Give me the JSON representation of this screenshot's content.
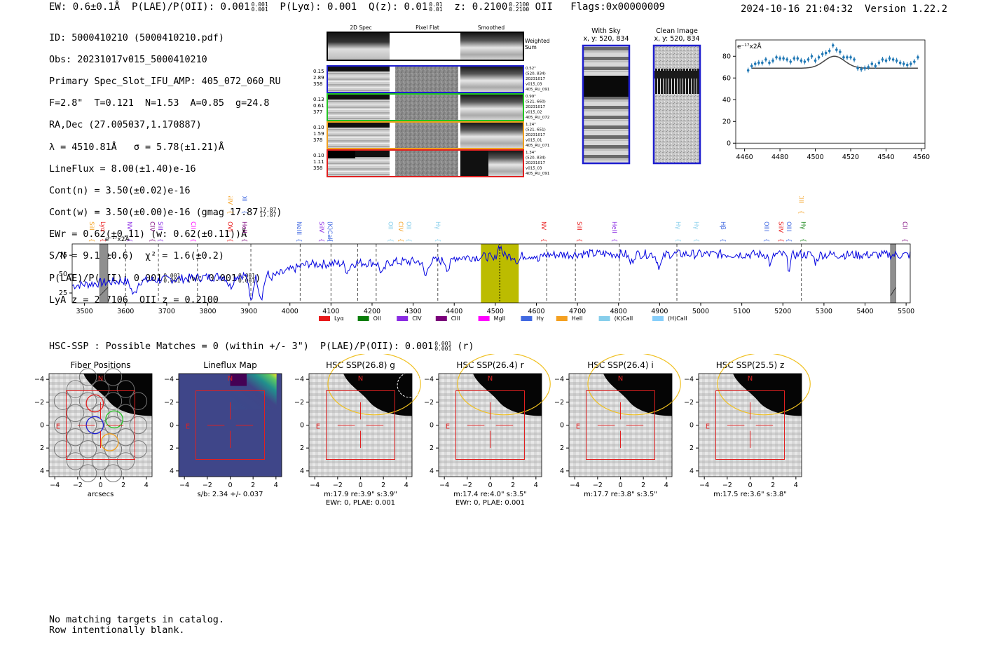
{
  "header": {
    "ew": "EW: 0.6±0.1Å",
    "plae_label": "P(LAE)/P(OII): 0.001",
    "plae_hi": "0.001",
    "plae_lo": "0.001",
    "plya": "P(Lyα): 0.001",
    "qz_label": "Q(z): 0.01",
    "qz_hi": "0.01",
    "qz_lo": "0.01",
    "z_label": "z: 0.2100",
    "z_hi": "0.2100",
    "z_lo": "0.2100",
    "z_line": "OII",
    "flags": "Flags:0x00000009",
    "timestamp": "2024-10-16 21:04:32",
    "version": "Version 1.22.2"
  },
  "info": {
    "id": "ID: 5000410210 (5000410210.pdf)",
    "obs": "Obs: 20231017v015_5000410210",
    "primary": "Primary Spec_Slot_IFU_AMP: 405_072_060_RU",
    "fit": "F=2.8\"  T=0.121  N=1.53  A=0.85  g=24.8",
    "radec": "RA,Dec (27.005037,1.170887)",
    "lambda": "λ = 4510.81Å   σ = 5.78(±1.21)Å",
    "lineflux": "LineFlux = 8.00(±1.40)e-16",
    "contn": "Cont(n) = 3.50(±0.02)e-16",
    "contw_label": "Cont(w) = 3.50(±0.00)e-16 (gmag 17.87",
    "contw_hi": "17.87",
    "contw_lo": "17.87",
    "ewr": "EWr = 0.62(±0.11) (w: 0.62(±0.11))Å",
    "sn": "S/N = 9.1(±0.6)  χ² = 1.6(±0.2)",
    "plae_label": "P(LAE)/P(OII): 0.001",
    "plae_hi": "0.001",
    "plae_lo": "0.001",
    "plae_w_label": "(w: 0.001",
    "plae_w_hi": "0.001",
    "plae_w_lo": "0.001",
    "lya": "LyA z = 2.7106  OII z = 0.2100"
  },
  "cutouts": {
    "col_headers": [
      "2D Spec",
      "Pixel Flat",
      "Smoothed"
    ],
    "weighted_label_1": "Weighted",
    "weighted_label_2": "Sum",
    "rows": [
      {
        "left": [
          "0.15",
          "2.89",
          "358"
        ],
        "right": [
          "0.52\"",
          "(520, 834)",
          "20231017",
          "v015_03",
          "405_RU_091"
        ],
        "color": "#1f1fd0"
      },
      {
        "left": [
          "0.13",
          "0.61",
          "377"
        ],
        "right": [
          "0.99\"",
          "(521, 660)",
          "20231017",
          "v015_02",
          "405_RU_072"
        ],
        "color": "#22c422"
      },
      {
        "left": [
          "0.10",
          "1.59",
          "378"
        ],
        "right": [
          "1.24\"",
          "(521, 651)",
          "20231017",
          "v015_01",
          "405_RU_071"
        ],
        "color": "#f0a020"
      },
      {
        "left": [
          "0.10",
          "1.11",
          "358"
        ],
        "right": [
          "1.34\"",
          "(520, 834)",
          "20231017",
          "v015_03",
          "405_RU_091"
        ],
        "color": "#e02020"
      }
    ]
  },
  "sky_panels": {
    "with_sky_title": "With Sky",
    "with_sky_coords": "x, y: 520, 834",
    "clean_title": "Clean Image",
    "clean_coords": "x, y: 520, 834"
  },
  "chart_data": [
    {
      "type": "scatter",
      "title": "",
      "unit_label": "e⁻¹⁷x2Å",
      "xlim": [
        4455,
        4562
      ],
      "ylim": [
        -5,
        95
      ],
      "xticks": [
        4460,
        4480,
        4500,
        4520,
        4540,
        4560
      ],
      "yticks": [
        0,
        20,
        40,
        60,
        80
      ],
      "x": [
        4462,
        4464,
        4466,
        4468,
        4470,
        4472,
        4474,
        4476,
        4478,
        4480,
        4482,
        4484,
        4486,
        4488,
        4490,
        4492,
        4494,
        4496,
        4498,
        4500,
        4502,
        4504,
        4506,
        4508,
        4510,
        4512,
        4514,
        4516,
        4518,
        4520,
        4522,
        4524,
        4526,
        4528,
        4530,
        4532,
        4534,
        4536,
        4538,
        4540,
        4542,
        4544,
        4546,
        4548,
        4550,
        4552,
        4554,
        4556,
        4558
      ],
      "y": [
        67,
        71,
        73,
        74,
        74,
        77,
        74,
        76,
        79,
        78,
        78,
        77,
        75,
        78,
        78,
        76,
        75,
        77,
        80,
        76,
        79,
        82,
        83,
        85,
        90,
        86,
        84,
        79,
        79,
        79,
        77,
        69,
        68,
        69,
        70,
        73,
        71,
        74,
        77,
        76,
        78,
        77,
        76,
        74,
        73,
        72,
        73,
        75,
        79
      ],
      "fit_baseline": 69,
      "fit_peak": 80,
      "fit_center": 4510.8,
      "fit_sigma": 5.8
    },
    {
      "type": "line",
      "unit_label": "e⁻¹⁷x2Å",
      "xlim": [
        3470,
        5510
      ],
      "ylim": [
        12,
        90
      ],
      "xticks": [
        3500,
        3600,
        3700,
        3800,
        3900,
        4000,
        4100,
        4200,
        4300,
        4400,
        4500,
        4600,
        4700,
        4800,
        4900,
        5000,
        5100,
        5200,
        5300,
        5400,
        5500
      ],
      "yticks": [
        25,
        50,
        75
      ],
      "highlight": [
        4465,
        4557
      ],
      "center_line": 4510.8,
      "masked": [
        [
          3537,
          3557
        ],
        [
          5462,
          5475
        ]
      ],
      "dashed_lines": [
        3600,
        3680,
        3775,
        3905,
        4025,
        4100,
        4165,
        4210,
        4360,
        4625,
        4695,
        4802,
        4942,
        5245
      ],
      "legend": [
        {
          "label": "Lyα",
          "color": "#e8191a"
        },
        {
          "label": "OII",
          "color": "#0a7d0a"
        },
        {
          "label": "CIV",
          "color": "#8a2be2"
        },
        {
          "label": "CIII",
          "color": "#7a007a"
        },
        {
          "label": "MgII",
          "color": "#ff00ff"
        },
        {
          "label": "Hγ",
          "color": "#4169e1"
        },
        {
          "label": "HeII",
          "color": "#f4a020"
        },
        {
          "label": "(K)CaII",
          "color": "#87ceeb"
        },
        {
          "label": "(H)CaII",
          "color": "#87cefa"
        }
      ],
      "line_labels": [
        {
          "label": "SiII",
          "x": 3518,
          "color": "#f4a020",
          "row": 0
        },
        {
          "label": "Lyα",
          "x": 3545,
          "color": "#e8191a",
          "row": 0
        },
        {
          "label": "NV",
          "x": 3610,
          "color": "#8a2be2",
          "row": 0
        },
        {
          "label": "CIV",
          "x": 3665,
          "color": "#7a007a",
          "row": 0
        },
        {
          "label": "SiII",
          "x": 3685,
          "color": "#8a2be2",
          "row": 0
        },
        {
          "label": "CII",
          "x": 3765,
          "color": "#ff00ff",
          "row": 0
        },
        {
          "label": "OVI",
          "x": 3855,
          "color": "#e8191a",
          "row": 0
        },
        {
          "label": "HeII",
          "x": 3890,
          "color": "#7a007a",
          "row": 0
        },
        {
          "label": "SiIV",
          "x": 3855,
          "color": "#f4a020",
          "row": 1
        },
        {
          "label": "OII",
          "x": 3890,
          "color": "#4169e1",
          "row": 1
        },
        {
          "label": "NeIII",
          "x": 4023,
          "color": "#4169e1",
          "row": 0
        },
        {
          "label": "SiIV",
          "x": 4077,
          "color": "#8a2be2",
          "row": 0
        },
        {
          "label": "(K)CaII",
          "x": 4098,
          "color": "#4169e1",
          "row": 0
        },
        {
          "label": "OII",
          "x": 4245,
          "color": "#87ceeb",
          "row": 0
        },
        {
          "label": "CIV",
          "x": 4270,
          "color": "#f4a020",
          "row": 0
        },
        {
          "label": "OII",
          "x": 4290,
          "color": "#87ceeb",
          "row": 0
        },
        {
          "label": "Hγ",
          "x": 4360,
          "color": "#87ceeb",
          "row": 0
        },
        {
          "label": "NV",
          "x": 4618,
          "color": "#e8191a",
          "row": 0
        },
        {
          "label": "SiII",
          "x": 4705,
          "color": "#e8191a",
          "row": 0
        },
        {
          "label": "HeII",
          "x": 4790,
          "color": "#8a2be2",
          "row": 0
        },
        {
          "label": "Hγ",
          "x": 4945,
          "color": "#87ceeb",
          "row": 0
        },
        {
          "label": "Hγ",
          "x": 4990,
          "color": "#87ceeb",
          "row": 0
        },
        {
          "label": "Hβ",
          "x": 5055,
          "color": "#4169e1",
          "row": 0
        },
        {
          "label": "OIII",
          "x": 5160,
          "color": "#4169e1",
          "row": 0
        },
        {
          "label": "SiIV",
          "x": 5195,
          "color": "#e8191a",
          "row": 0
        },
        {
          "label": "OIII",
          "x": 5215,
          "color": "#4169e1",
          "row": 0
        },
        {
          "label": "CIII",
          "x": 5245,
          "color": "#f4a020",
          "row": 1
        },
        {
          "label": "Hγ",
          "x": 5250,
          "color": "#0a7d0a",
          "row": 0
        },
        {
          "label": "CII",
          "x": 5497,
          "color": "#7a007a",
          "row": 0
        }
      ]
    }
  ],
  "hsc": {
    "summary_label": "HSC-SSP : Possible Matches = 0 (within +/- 3\")  P(LAE)/P(OII): 0.001",
    "summary_hi": "0.001",
    "summary_lo": "0.001",
    "summary_band": "(r)",
    "axis_label": "arcsecs",
    "ticks": [
      "−4",
      "−2",
      "0",
      "2",
      "4"
    ],
    "north": "N",
    "east": "E",
    "panels": [
      {
        "title": "Fiber Positions",
        "caption1": "arcsecs",
        "caption2": ""
      },
      {
        "title": "Lineflux Map",
        "caption1": "s/b: 2.34 +/- 0.037",
        "caption2": ""
      },
      {
        "title": "HSC SSP(26.8) g",
        "caption1": "m:17.9  re:3.9\"  s:3.9\"",
        "caption2": "EWr: 0, PLAE: 0.001"
      },
      {
        "title": "HSC SSP(26.4) r",
        "caption1": "m:17.4  re:4.0\"  s:3.5\"",
        "caption2": "EWr: 0, PLAE: 0.001"
      },
      {
        "title": "HSC SSP(26.4) i",
        "caption1": "m:17.7  re:3.8\"  s:3.5\"",
        "caption2": ""
      },
      {
        "title": "HSC SSP(25.5) z",
        "caption1": "m:17.5  re:3.6\"  s:3.8\"",
        "caption2": ""
      }
    ]
  },
  "footer": {
    "line1": "No matching targets in catalog.",
    "line2": "Row intentionally blank."
  },
  "colors": {
    "spectrum": "#0000e0",
    "highlight": "#bcbc00",
    "fit": "#444444",
    "points": "#1f77b4",
    "crosshair": "#e02020",
    "ellipse": "#f0c020"
  }
}
